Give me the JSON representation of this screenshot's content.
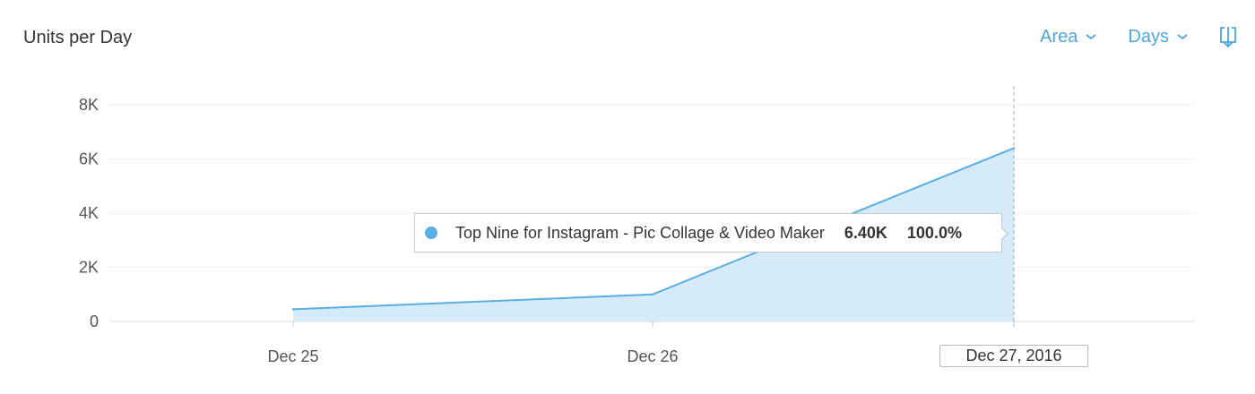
{
  "header": {
    "title": "Units per Day",
    "chart_type_label": "Area",
    "interval_label": "Days",
    "download_icon": "download-icon"
  },
  "colors": {
    "accent": "#4da6e0",
    "series_line": "#5aaee4",
    "series_fill": "#d6ebfa",
    "grid": "#e6e6e6"
  },
  "tooltip": {
    "series_name": "Top Nine for Instagram - Pic Collage & Video Maker",
    "value": "6.40K",
    "percent": "100.0%"
  },
  "highlight_date": "Dec 27, 2016",
  "chart_data": {
    "type": "area",
    "title": "Units per Day",
    "x": [
      "Dec 25",
      "Dec 26",
      "Dec 27, 2016"
    ],
    "x_tick_labels": [
      "Dec 25",
      "Dec 26"
    ],
    "series": [
      {
        "name": "Top Nine for Instagram - Pic Collage & Video Maker",
        "values": [
          450,
          1000,
          6400
        ]
      }
    ],
    "ylim": [
      0,
      8000
    ],
    "y_ticks": [
      0,
      2000,
      4000,
      6000,
      8000
    ],
    "y_tick_labels": [
      "0",
      "2K",
      "4K",
      "6K",
      "8K"
    ],
    "grid": true
  }
}
